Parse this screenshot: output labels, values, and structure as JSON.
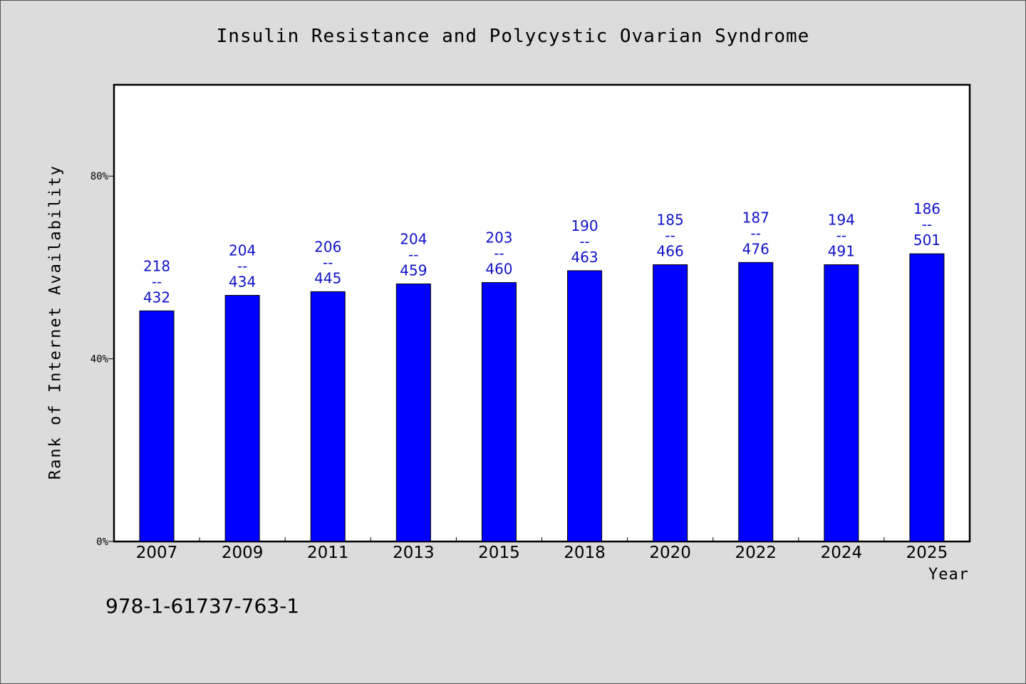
{
  "chart_data": {
    "type": "bar",
    "title": "Insulin Resistance and Polycystic Ovarian Syndrome",
    "xlabel": "Year",
    "ylabel": "Rank of Internet Availability",
    "categories": [
      "2007",
      "2009",
      "2011",
      "2013",
      "2015",
      "2018",
      "2020",
      "2022",
      "2024",
      "2025"
    ],
    "values": [
      50.5,
      53.9,
      54.7,
      56.4,
      56.7,
      59.3,
      60.6,
      61.1,
      60.6,
      63.0
    ],
    "data_labels": [
      [
        "218",
        "--",
        "432"
      ],
      [
        "204",
        "--",
        "434"
      ],
      [
        "206",
        "--",
        "445"
      ],
      [
        "204",
        "--",
        "459"
      ],
      [
        "203",
        "--",
        "460"
      ],
      [
        "190",
        "--",
        "463"
      ],
      [
        "185",
        "--",
        "466"
      ],
      [
        "187",
        "--",
        "476"
      ],
      [
        "194",
        "--",
        "491"
      ],
      [
        "186",
        "--",
        "501"
      ]
    ],
    "ylim": [
      0,
      100
    ],
    "yticks": [
      0,
      40,
      80
    ],
    "ytick_labels": [
      "0%",
      "40%",
      "80%"
    ],
    "bar_color": "#0000ff",
    "label_color": "#1010c8",
    "grid": false,
    "legend": "none"
  },
  "footnote": "978-1-61737-763-1"
}
